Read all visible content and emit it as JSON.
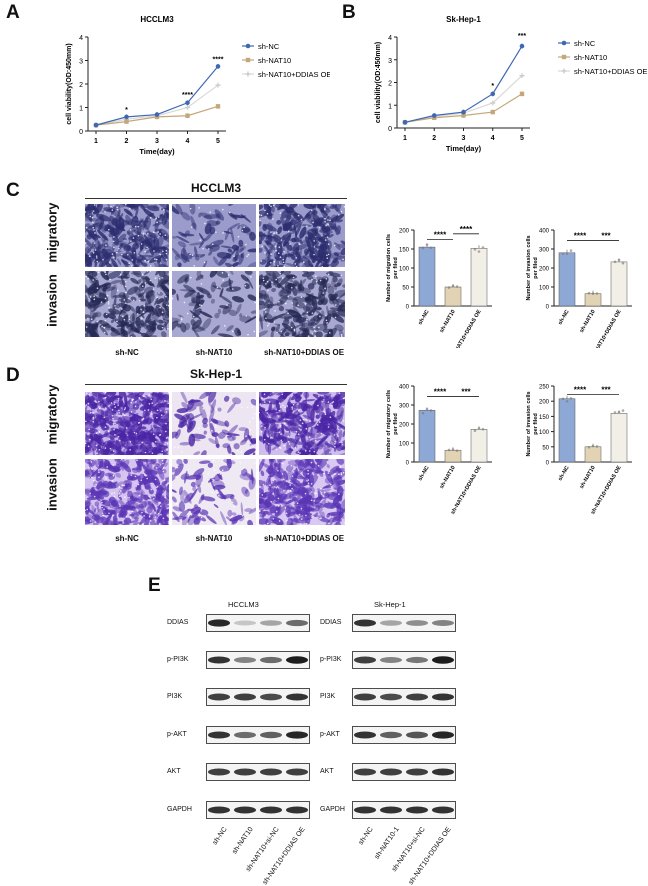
{
  "panels": {
    "A": "A",
    "B": "B",
    "C": "C",
    "D": "D",
    "E": "E"
  },
  "growth_charts": [
    {
      "id": "A",
      "title": "HCCLM3",
      "xlabel": "Time(day)",
      "ylabel": "cell viability(OD:450mm)",
      "xticks": [
        1,
        2,
        3,
        4,
        5
      ],
      "yticks": [
        0,
        1,
        2,
        3,
        4
      ],
      "ylim": [
        0,
        4
      ],
      "series": [
        {
          "name": "sh-NC",
          "color": "#3f68b3",
          "marker": "circle",
          "values": [
            0.25,
            0.6,
            0.7,
            1.2,
            2.75
          ]
        },
        {
          "name": "sh-NAT10",
          "color": "#c4a77a",
          "marker": "square",
          "values": [
            0.25,
            0.4,
            0.6,
            0.65,
            1.05
          ]
        },
        {
          "name": "sh-NAT10+DDIAS OE",
          "color": "#d9d9d9",
          "marker": "cross",
          "values": [
            0.25,
            0.5,
            0.65,
            1.0,
            1.95
          ]
        }
      ],
      "annotations": [
        {
          "x": 2,
          "y": 0.8,
          "text": "*"
        },
        {
          "x": 4,
          "y": 1.45,
          "text": "****"
        },
        {
          "x": 5,
          "y": 2.95,
          "text": "****"
        }
      ]
    },
    {
      "id": "B",
      "title": "Sk-Hep-1",
      "xlabel": "Time(day)",
      "ylabel": "cell viability(OD:450mm)",
      "xticks": [
        1,
        2,
        3,
        4,
        5
      ],
      "yticks": [
        0,
        1,
        2,
        3,
        4
      ],
      "ylim": [
        0,
        4
      ],
      "series": [
        {
          "name": "sh-NC",
          "color": "#3f68b3",
          "marker": "circle",
          "values": [
            0.25,
            0.55,
            0.7,
            1.5,
            3.6
          ]
        },
        {
          "name": "sh-NAT10",
          "color": "#c4a77a",
          "marker": "square",
          "values": [
            0.25,
            0.45,
            0.55,
            0.7,
            1.5
          ]
        },
        {
          "name": "sh-NAT10+DDIAS OE",
          "color": "#d9d9d9",
          "marker": "cross",
          "values": [
            0.25,
            0.5,
            0.65,
            1.1,
            2.3
          ]
        }
      ],
      "annotations": [
        {
          "x": 4,
          "y": 1.75,
          "text": "*"
        },
        {
          "x": 5,
          "y": 3.95,
          "text": "***"
        }
      ]
    }
  ],
  "micro_C": {
    "title": "HCCLM3",
    "rows": [
      "migratory",
      "invasion"
    ],
    "cols": [
      "sh-NC",
      "sh-NAT10",
      "sh-NAT10+DDIAS OE"
    ]
  },
  "micro_D": {
    "title": "Sk-Hep-1",
    "rows": [
      "migratory",
      "invasion"
    ],
    "cols": [
      "sh-NC",
      "sh-NAT10",
      "sh-NAT10+DDIAS OE"
    ]
  },
  "chart_data": [
    {
      "type": "bar",
      "id": "C1",
      "categories": [
        "sh-NC",
        "sh-NAT10",
        "sh-NAT10+DDIAS OE"
      ],
      "values": [
        155,
        50,
        152
      ],
      "ylim": [
        0,
        200
      ],
      "yticks": [
        0,
        50,
        100,
        150,
        200
      ],
      "ylabel": "Number of migration cells per filed",
      "colors": [
        "#8ea8d6",
        "#e3d3b5",
        "#f2efe6"
      ],
      "sig": [
        {
          "from": 0,
          "to": 1,
          "text": "****",
          "level": 175
        },
        {
          "from": 1,
          "to": 2,
          "text": "****",
          "level": 190
        }
      ]
    },
    {
      "type": "bar",
      "id": "C2",
      "categories": [
        "sh-NC",
        "sh-NAT10",
        "sh-NAT10+DDIAS OE"
      ],
      "values": [
        280,
        65,
        232
      ],
      "ylim": [
        0,
        400
      ],
      "yticks": [
        0,
        100,
        200,
        300,
        400
      ],
      "ylabel": "Number of invasion cells per filed",
      "colors": [
        "#8ea8d6",
        "#e3d3b5",
        "#f2efe6"
      ],
      "sig": [
        {
          "from": 0,
          "to": 1,
          "text": "****",
          "level": 345
        },
        {
          "from": 1,
          "to": 2,
          "text": "***",
          "level": 345
        }
      ]
    },
    {
      "type": "bar",
      "id": "D1",
      "categories": [
        "sh-NC",
        "sh-NAT10",
        "sh-NAT10+DDIAS OE"
      ],
      "values": [
        272,
        62,
        172
      ],
      "ylim": [
        0,
        400
      ],
      "yticks": [
        0,
        100,
        200,
        300,
        400
      ],
      "ylabel": "Number of migratory cells per filed",
      "colors": [
        "#8ea8d6",
        "#e3d3b5",
        "#f2efe6"
      ],
      "sig": [
        {
          "from": 0,
          "to": 1,
          "text": "****",
          "level": 345
        },
        {
          "from": 1,
          "to": 2,
          "text": "***",
          "level": 345
        }
      ]
    },
    {
      "type": "bar",
      "id": "D2",
      "categories": [
        "sh-NC",
        "sh-NAT10",
        "sh-NAT10+DDIAS OE"
      ],
      "values": [
        208,
        50,
        160
      ],
      "ylim": [
        0,
        250
      ],
      "yticks": [
        0,
        50,
        100,
        150,
        200,
        250
      ],
      "ylabel": "Number of invasion cells per filed",
      "colors": [
        "#8ea8d6",
        "#e3d3b5",
        "#f2efe6"
      ],
      "sig": [
        {
          "from": 0,
          "to": 1,
          "text": "****",
          "level": 222
        },
        {
          "from": 1,
          "to": 2,
          "text": "***",
          "level": 222
        }
      ]
    }
  ],
  "western": {
    "proteins": [
      "DDIAS",
      "p-PI3K",
      "PI3K",
      "p-AKT",
      "AKT",
      "GAPDH"
    ],
    "blots": [
      {
        "title": "HCCLM3",
        "lanes": [
          "sh-NC",
          "sh-NAT10",
          "sh-NAT10+si-NC",
          "sh-NAT10+DDIAS OE"
        ],
        "intensity": [
          [
            0.9,
            0.2,
            0.35,
            0.6
          ],
          [
            0.85,
            0.5,
            0.6,
            0.95
          ],
          [
            0.8,
            0.8,
            0.75,
            0.85
          ],
          [
            0.85,
            0.6,
            0.65,
            0.9
          ],
          [
            0.8,
            0.8,
            0.8,
            0.8
          ],
          [
            0.85,
            0.85,
            0.85,
            0.85
          ]
        ]
      },
      {
        "title": "Sk-Hep-1",
        "lanes": [
          "sh-NC",
          "sh-NAT10-1",
          "sh-NAT10+si-NC",
          "sh-NAT10+DDIAS OE"
        ],
        "intensity": [
          [
            0.85,
            0.35,
            0.45,
            0.5
          ],
          [
            0.8,
            0.5,
            0.55,
            0.95
          ],
          [
            0.8,
            0.75,
            0.8,
            0.85
          ],
          [
            0.85,
            0.65,
            0.7,
            0.9
          ],
          [
            0.8,
            0.8,
            0.8,
            0.85
          ],
          [
            0.85,
            0.85,
            0.85,
            0.85
          ]
        ]
      }
    ]
  }
}
